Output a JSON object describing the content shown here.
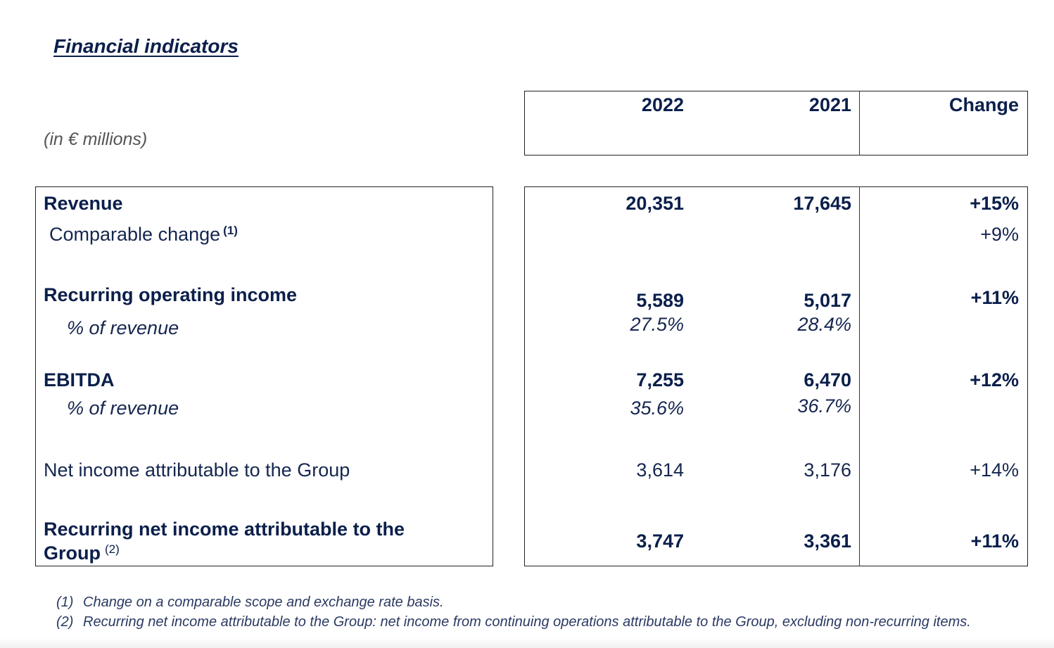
{
  "title": "Financial indicators",
  "units": "(in € millions)",
  "columns": {
    "y2022": "2022",
    "y2021": "2021",
    "change": "Change"
  },
  "rows": {
    "revenue": {
      "label": "Revenue",
      "v2022": "20,351",
      "v2021": "17,645",
      "change": "+15%"
    },
    "comparable_change": {
      "label": "Comparable change",
      "footnote": "(1)",
      "change": "+9%"
    },
    "recurring_operating_income": {
      "label": "Recurring operating income",
      "v2022": "5,589",
      "v2021": "5,017",
      "change": "+11%"
    },
    "roi_margin": {
      "label": "% of revenue",
      "v2022": "27.5%",
      "v2021": "28.4%"
    },
    "ebitda": {
      "label": "EBITDA",
      "v2022": "7,255",
      "v2021": "6,470",
      "change": "+12%"
    },
    "ebitda_margin": {
      "label": "% of revenue",
      "v2022": "35.6%",
      "v2021": "36.7%"
    },
    "net_income": {
      "label": "Net income attributable to the Group",
      "v2022": "3,614",
      "v2021": "3,176",
      "change": "+14%"
    },
    "recurring_net_income": {
      "label_line1": "Recurring net income attributable to the",
      "label_line2": "Group",
      "footnote": "(2)",
      "v2022": "3,747",
      "v2021": "3,361",
      "change": "+11%"
    }
  },
  "footnotes": [
    {
      "num": "(1)",
      "text": "Change on a comparable scope and exchange rate basis."
    },
    {
      "num": "(2)",
      "text": "Recurring net income attributable to the Group: net income from continuing operations attributable to the Group, excluding non-recurring items."
    }
  ]
}
